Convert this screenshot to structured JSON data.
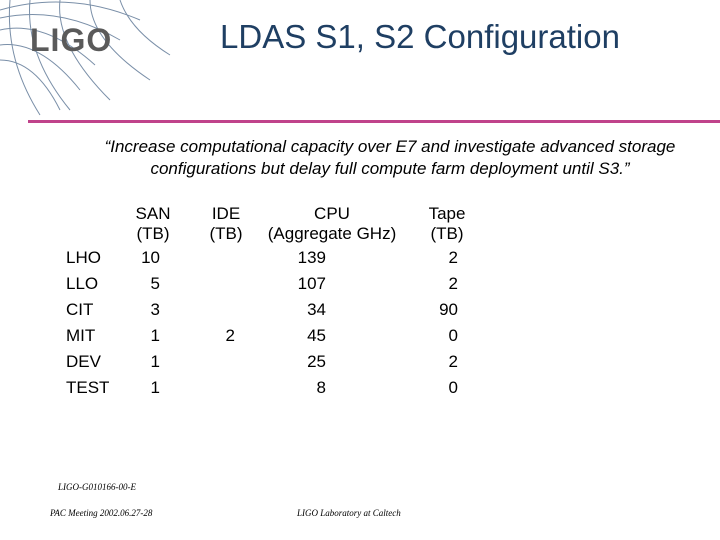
{
  "logo": "LIGO",
  "title": "LDAS S1, S2 Configuration",
  "quote": "“Increase computational capacity over E7 and investigate advanced storage configurations but delay full compute farm deployment until S3.”",
  "headers": {
    "san": [
      "SAN",
      "(TB)"
    ],
    "ide": [
      "IDE",
      "(TB)"
    ],
    "cpu": [
      "CPU",
      "(Aggregate GHz)"
    ],
    "tape": [
      "Tape",
      "(TB)"
    ]
  },
  "rows": [
    {
      "site": "LHO",
      "san": "10",
      "ide": "",
      "cpu": "139",
      "tape": "2"
    },
    {
      "site": "LLO",
      "san": "5",
      "ide": "",
      "cpu": "107",
      "tape": "2"
    },
    {
      "site": "CIT",
      "san": "3",
      "ide": "",
      "cpu": "34",
      "tape": "90"
    },
    {
      "site": "MIT",
      "san": "1",
      "ide": "2",
      "cpu": "45",
      "tape": "0"
    },
    {
      "site": "DEV",
      "san": "1",
      "ide": "",
      "cpu": "25",
      "tape": "2"
    },
    {
      "site": "TEST",
      "san": "1",
      "ide": "",
      "cpu": "8",
      "tape": "0"
    }
  ],
  "footer": {
    "doc_id": "LIGO-G010166-00-E",
    "meeting": "PAC Meeting 2002.06.27-28",
    "lab": "LIGO Laboratory at Caltech"
  },
  "colors": {
    "title": "#1f3f63",
    "rule": "#c0438b",
    "arcs": "#7a8fa8"
  }
}
